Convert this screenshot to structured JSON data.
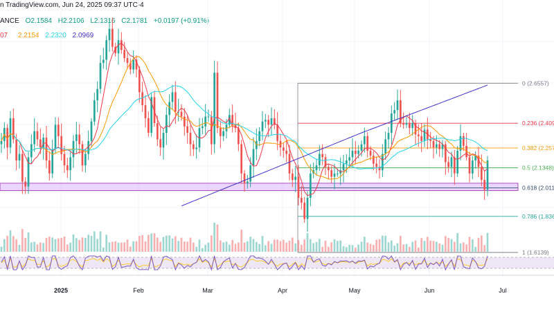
{
  "header": {
    "source": "n TradingView.com, Jun 24, 2025 09:37 UTC-4",
    "symbol_fragment": "ANCE",
    "open": "O2.1584",
    "high": "H2.2106",
    "low": "L2.1316",
    "close": "C2.1781",
    "change": "+0.0197 (+0.91%)",
    "ma_fragment": "07",
    "ma2": "2.2154",
    "ma3": "2.2320",
    "ma4": "2.0969"
  },
  "colors": {
    "up": "#26a69a",
    "down": "#ef5350",
    "ma20": "#f23645",
    "ma50": "#ff9800",
    "ma100": "#22d3ee",
    "ma200": "#3f33c9",
    "zone": "#d8b4fe",
    "rsi_band": "#ede7f6"
  },
  "chart_data": {
    "type": "candlestick",
    "x_ticks": [
      "2025",
      "Feb",
      "Mar",
      "Apr",
      "May",
      "Jun",
      "Jul"
    ],
    "fib_levels": [
      {
        "label": "0 (2.6557)",
        "value": 2.6557,
        "color": "#787b86"
      },
      {
        "label": "0.236 (2.409",
        "value": 2.409,
        "color": "#f23645"
      },
      {
        "label": "0.382 (2.257",
        "value": 2.257,
        "color": "#ff9800"
      },
      {
        "label": "0.5 (2.1348)",
        "value": 2.1348,
        "color": "#4caf50"
      },
      {
        "label": "0.618 (2.011",
        "value": 2.011,
        "color": "#2b4b6b"
      },
      {
        "label": "0.786 (1.836",
        "value": 1.836,
        "color": "#26a69a"
      },
      {
        "label": "1 (1.6139)",
        "value": 1.6139,
        "color": "#787b86"
      }
    ],
    "price_ylim": [
      1.55,
      3.04
    ],
    "closes": [
      2.3,
      2.38,
      2.26,
      2.44,
      2.31,
      2.18,
      2.22,
      2.05,
      2.02,
      2.2,
      2.28,
      2.36,
      2.31,
      2.26,
      2.32,
      2.18,
      2.1,
      2.25,
      2.4,
      2.33,
      2.22,
      2.15,
      2.12,
      2.2,
      2.3,
      2.34,
      2.28,
      2.15,
      2.22,
      2.3,
      2.42,
      2.55,
      2.62,
      2.78,
      2.8,
      2.92,
      2.99,
      2.88,
      2.84,
      2.92,
      2.86,
      2.81,
      2.78,
      2.74,
      2.8,
      2.74,
      2.6,
      2.52,
      2.44,
      2.35,
      2.57,
      2.41,
      2.31,
      2.26,
      2.35,
      2.46,
      2.54,
      2.6,
      2.48,
      2.48,
      2.45,
      2.39,
      2.35,
      2.28,
      2.25,
      2.26,
      2.38,
      2.39,
      2.45,
      2.45,
      2.28,
      2.72,
      2.38,
      2.33,
      2.36,
      2.4,
      2.46,
      2.4,
      2.38,
      2.28,
      2.1,
      2.04,
      2.05,
      2.15,
      2.25,
      2.3,
      2.36,
      2.42,
      2.43,
      2.4,
      2.44,
      2.4,
      2.3,
      2.26,
      2.24,
      2.22,
      2.1,
      2.06,
      2.08,
      1.95,
      1.92,
      1.82,
      1.95,
      2.1,
      2.12,
      2.15,
      2.22,
      2.2,
      2.14,
      2.12,
      2.08,
      2.1,
      2.1,
      2.12,
      2.16,
      2.18,
      2.2,
      2.24,
      2.22,
      2.24,
      2.28,
      2.33,
      2.24,
      2.21,
      2.16,
      2.14,
      2.12,
      2.22,
      2.31,
      2.35,
      2.47,
      2.49,
      2.55,
      2.41,
      2.4,
      2.41,
      2.38,
      2.41,
      2.34,
      2.33,
      2.3,
      2.37,
      2.31,
      2.3,
      2.26,
      2.28,
      2.25,
      2.28,
      2.17,
      2.14,
      2.2,
      2.1,
      2.24,
      2.33,
      2.27,
      2.2,
      2.1,
      2.18,
      2.21,
      2.14,
      2.06,
      2.0,
      2.18
    ],
    "rsi_band": [
      30,
      70
    ],
    "rsi_ylim": [
      20,
      80
    ]
  }
}
